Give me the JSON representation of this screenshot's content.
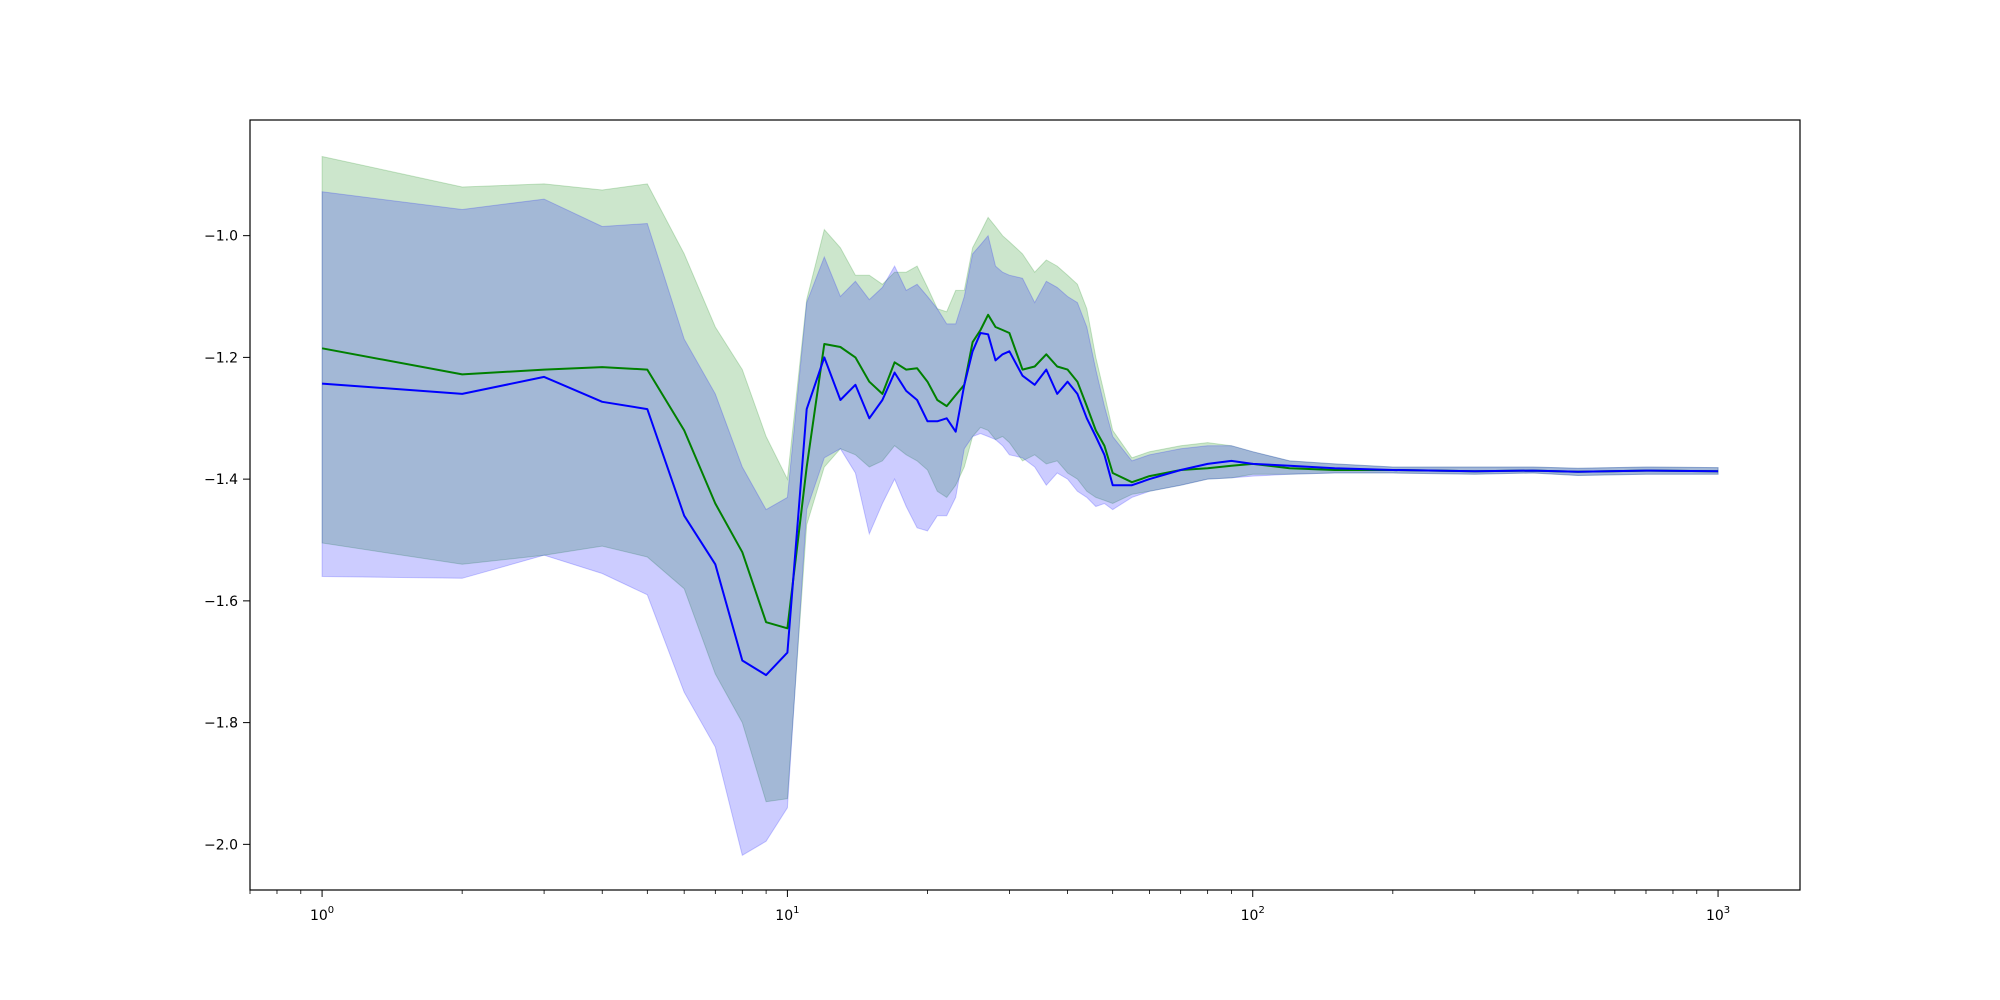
{
  "chart_data": {
    "type": "line",
    "title": "",
    "xlabel": "",
    "ylabel": "",
    "xscale": "log",
    "xlim": [
      0.7,
      1500
    ],
    "ylim": [
      -2.075,
      -0.81
    ],
    "grid": false,
    "x_ticks": [
      {
        "value": 1,
        "base": "10",
        "exp": "0"
      },
      {
        "value": 10,
        "base": "10",
        "exp": "1"
      },
      {
        "value": 100,
        "base": "10",
        "exp": "2"
      },
      {
        "value": 1000,
        "base": "10",
        "exp": "3"
      }
    ],
    "y_ticks": [
      {
        "value": -1.0,
        "label": "−1.0"
      },
      {
        "value": -1.2,
        "label": "−1.2"
      },
      {
        "value": -1.4,
        "label": "−1.4"
      },
      {
        "value": -1.6,
        "label": "−1.6"
      },
      {
        "value": -1.8,
        "label": "−1.8"
      },
      {
        "value": -2.0,
        "label": "−2.0"
      }
    ],
    "series": [
      {
        "color": "#008000",
        "band_color": "#008000",
        "band_opacity": 0.2,
        "x": [
          1,
          2,
          3,
          4,
          5,
          6,
          7,
          8,
          9,
          10,
          11,
          12,
          13,
          14,
          15,
          16,
          17,
          18,
          19,
          20,
          21,
          22,
          23,
          24,
          25,
          26,
          27,
          28,
          29,
          30,
          32,
          34,
          36,
          38,
          40,
          42,
          44,
          46,
          48,
          50,
          55,
          60,
          70,
          80,
          90,
          100,
          120,
          150,
          200,
          300,
          400,
          500,
          700,
          1000
        ],
        "y": [
          -1.185,
          -1.228,
          -1.22,
          -1.216,
          -1.22,
          -1.32,
          -1.44,
          -1.52,
          -1.635,
          -1.645,
          -1.38,
          -1.178,
          -1.183,
          -1.2,
          -1.24,
          -1.26,
          -1.208,
          -1.22,
          -1.218,
          -1.24,
          -1.27,
          -1.28,
          -1.262,
          -1.245,
          -1.175,
          -1.155,
          -1.13,
          -1.15,
          -1.155,
          -1.16,
          -1.22,
          -1.215,
          -1.195,
          -1.215,
          -1.22,
          -1.24,
          -1.28,
          -1.32,
          -1.345,
          -1.39,
          -1.405,
          -1.395,
          -1.385,
          -1.382,
          -1.378,
          -1.375,
          -1.382,
          -1.385,
          -1.385,
          -1.387,
          -1.386,
          -1.388,
          -1.386,
          -1.387
        ],
        "lower": [
          -1.505,
          -1.54,
          -1.525,
          -1.51,
          -1.528,
          -1.58,
          -1.72,
          -1.8,
          -1.93,
          -1.925,
          -1.475,
          -1.38,
          -1.35,
          -1.36,
          -1.38,
          -1.37,
          -1.345,
          -1.36,
          -1.37,
          -1.385,
          -1.42,
          -1.43,
          -1.41,
          -1.38,
          -1.33,
          -1.315,
          -1.32,
          -1.335,
          -1.33,
          -1.34,
          -1.37,
          -1.36,
          -1.375,
          -1.37,
          -1.39,
          -1.4,
          -1.42,
          -1.43,
          -1.435,
          -1.44,
          -1.425,
          -1.42,
          -1.41,
          -1.4,
          -1.398,
          -1.392,
          -1.392,
          -1.39,
          -1.39,
          -1.392,
          -1.39,
          -1.394,
          -1.392,
          -1.392
        ],
        "upper": [
          -0.87,
          -0.92,
          -0.915,
          -0.925,
          -0.915,
          -1.03,
          -1.15,
          -1.22,
          -1.33,
          -1.4,
          -1.105,
          -0.99,
          -1.02,
          -1.065,
          -1.065,
          -1.08,
          -1.06,
          -1.06,
          -1.05,
          -1.085,
          -1.12,
          -1.125,
          -1.09,
          -1.09,
          -1.02,
          -0.995,
          -0.97,
          -0.985,
          -1.0,
          -1.01,
          -1.03,
          -1.06,
          -1.04,
          -1.05,
          -1.065,
          -1.08,
          -1.12,
          -1.2,
          -1.26,
          -1.32,
          -1.365,
          -1.355,
          -1.345,
          -1.34,
          -1.345,
          -1.355,
          -1.37,
          -1.375,
          -1.38,
          -1.38,
          -1.38,
          -1.382,
          -1.38,
          -1.381
        ]
      },
      {
        "color": "#0000ff",
        "band_color": "#0000ff",
        "band_opacity": 0.2,
        "x": [
          1,
          2,
          3,
          4,
          5,
          6,
          7,
          8,
          9,
          10,
          11,
          12,
          13,
          14,
          15,
          16,
          17,
          18,
          19,
          20,
          21,
          22,
          23,
          24,
          25,
          26,
          27,
          28,
          29,
          30,
          32,
          34,
          36,
          38,
          40,
          42,
          44,
          46,
          48,
          50,
          55,
          60,
          70,
          80,
          90,
          100,
          120,
          150,
          200,
          300,
          400,
          500,
          700,
          1000
        ],
        "y": [
          -1.243,
          -1.26,
          -1.232,
          -1.273,
          -1.285,
          -1.46,
          -1.54,
          -1.698,
          -1.722,
          -1.685,
          -1.285,
          -1.2,
          -1.27,
          -1.245,
          -1.3,
          -1.27,
          -1.225,
          -1.255,
          -1.27,
          -1.305,
          -1.305,
          -1.3,
          -1.322,
          -1.245,
          -1.19,
          -1.16,
          -1.162,
          -1.205,
          -1.195,
          -1.19,
          -1.23,
          -1.245,
          -1.22,
          -1.26,
          -1.24,
          -1.26,
          -1.3,
          -1.33,
          -1.36,
          -1.41,
          -1.41,
          -1.4,
          -1.385,
          -1.375,
          -1.37,
          -1.375,
          -1.378,
          -1.382,
          -1.385,
          -1.387,
          -1.386,
          -1.388,
          -1.386,
          -1.387
        ],
        "lower": [
          -1.56,
          -1.563,
          -1.525,
          -1.555,
          -1.59,
          -1.75,
          -1.84,
          -2.018,
          -1.995,
          -1.94,
          -1.45,
          -1.365,
          -1.35,
          -1.39,
          -1.49,
          -1.44,
          -1.4,
          -1.445,
          -1.48,
          -1.485,
          -1.46,
          -1.46,
          -1.43,
          -1.35,
          -1.33,
          -1.325,
          -1.33,
          -1.335,
          -1.345,
          -1.36,
          -1.365,
          -1.38,
          -1.41,
          -1.39,
          -1.4,
          -1.42,
          -1.43,
          -1.445,
          -1.44,
          -1.45,
          -1.43,
          -1.42,
          -1.41,
          -1.4,
          -1.398,
          -1.395,
          -1.392,
          -1.39,
          -1.39,
          -1.392,
          -1.39,
          -1.394,
          -1.392,
          -1.392
        ],
        "upper": [
          -0.928,
          -0.957,
          -0.94,
          -0.985,
          -0.98,
          -1.17,
          -1.26,
          -1.38,
          -1.45,
          -1.43,
          -1.11,
          -1.035,
          -1.1,
          -1.075,
          -1.105,
          -1.085,
          -1.05,
          -1.09,
          -1.08,
          -1.1,
          -1.12,
          -1.145,
          -1.145,
          -1.1,
          -1.03,
          -1.015,
          -1.0,
          -1.05,
          -1.06,
          -1.065,
          -1.07,
          -1.11,
          -1.075,
          -1.085,
          -1.1,
          -1.11,
          -1.15,
          -1.22,
          -1.28,
          -1.33,
          -1.37,
          -1.36,
          -1.35,
          -1.345,
          -1.345,
          -1.355,
          -1.37,
          -1.375,
          -1.38,
          -1.38,
          -1.38,
          -1.382,
          -1.38,
          -1.381
        ]
      }
    ]
  }
}
